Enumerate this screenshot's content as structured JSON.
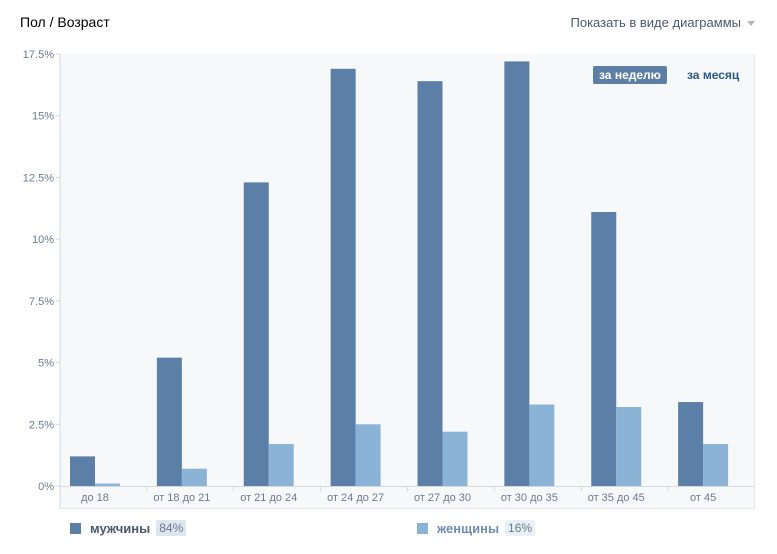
{
  "header": {
    "title": "Пол / Возраст",
    "view_toggle": "Показать в виде диаграммы"
  },
  "periods": {
    "week": "за неделю",
    "month": "за месяц",
    "selected": "week"
  },
  "legend": [
    {
      "name": "мужчины",
      "percent": "84%",
      "color": "#5b7fa6",
      "badge_bg": "#dde5ee"
    },
    {
      "name": "женщины",
      "percent": "16%",
      "color": "#8bb3d6",
      "badge_bg": "#e8eff6"
    }
  ],
  "chart_data": {
    "type": "bar",
    "categories": [
      "до 18",
      "от 18 до 21",
      "от 21 до 24",
      "от 24 до 27",
      "от 27 до 30",
      "от 30 до 35",
      "от 35 до 45",
      "от 45"
    ],
    "series": [
      {
        "name": "мужчины",
        "color": "#5b7fa6",
        "values": [
          1.2,
          5.2,
          12.3,
          16.9,
          16.4,
          17.2,
          11.1,
          3.4
        ]
      },
      {
        "name": "женщины",
        "color": "#8bb3d6",
        "values": [
          0.1,
          0.7,
          1.7,
          2.5,
          2.2,
          3.3,
          3.2,
          1.7
        ]
      }
    ],
    "yticks": [
      "0%",
      "2.5%",
      "5%",
      "7.5%",
      "10%",
      "12.5%",
      "15%",
      "17.5%"
    ],
    "ylim": [
      0,
      17.5
    ],
    "grid": false,
    "legend_position": "bottom"
  }
}
